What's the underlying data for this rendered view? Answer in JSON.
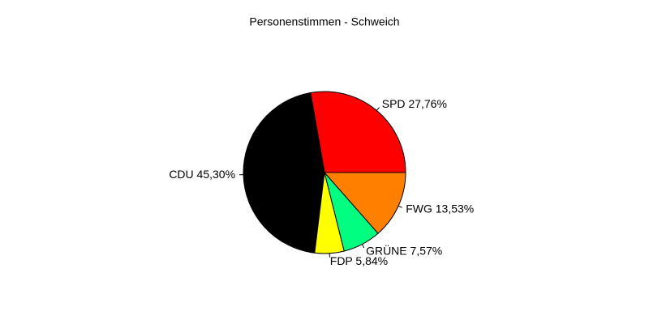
{
  "chart_data": {
    "type": "pie",
    "title": "Personenstimmen - Schweich",
    "categories": [
      "SPD",
      "CDU",
      "FDP",
      "GRÜNE",
      "FWG"
    ],
    "values": [
      27.76,
      45.3,
      5.84,
      7.57,
      13.53
    ],
    "value_labels": [
      "27,76%",
      "45,30%",
      "5,84%",
      "7,57%",
      "13,53%"
    ],
    "colors": [
      "#ff0000",
      "#000000",
      "#ffff00",
      "#00ff80",
      "#ff8000"
    ]
  }
}
